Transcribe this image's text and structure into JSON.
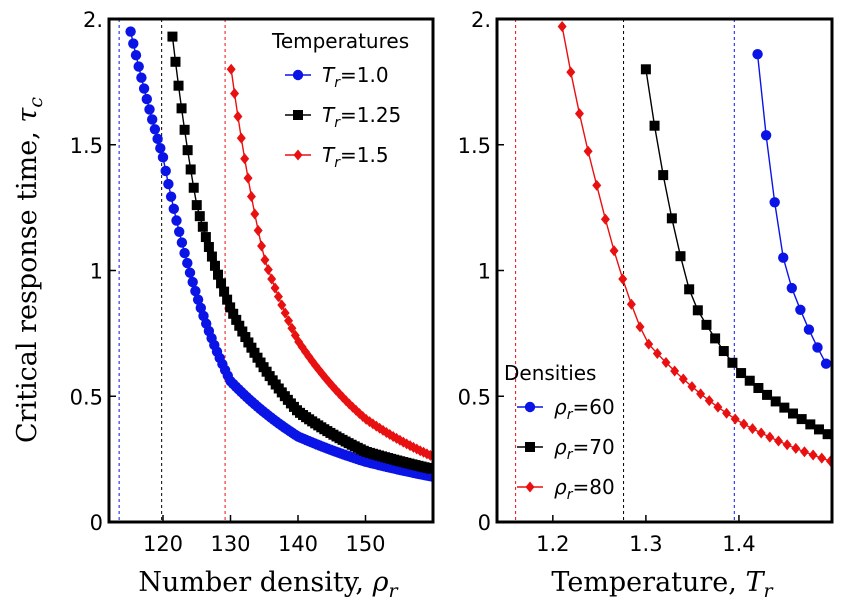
{
  "chart_data": [
    {
      "type": "scatter",
      "panel": "left",
      "xlabel": "Number density, ",
      "xlabel_symbol": "ρ",
      "xlabel_sub": "r",
      "ylabel": "Critical response time, ",
      "ylabel_symbol": "τ",
      "ylabel_sub": "c",
      "xlim": [
        112,
        160
      ],
      "ylim": [
        0,
        2.0
      ],
      "xticks": [
        120,
        130,
        140,
        150
      ],
      "xtick_labels": [
        "120",
        "130",
        "140",
        "150"
      ],
      "yticks": [
        0,
        0.5,
        1,
        1.5,
        2.0
      ],
      "ytick_labels": [
        "0",
        "0.5",
        "1",
        "1.5",
        "2."
      ],
      "legend_title": "Temperatures",
      "legend_position": "top-right",
      "series": [
        {
          "name": "Tr=1.0",
          "legend_prefix": "T",
          "legend_sub": "r",
          "legend_suffix": "=1.0",
          "color": "#0a14e6",
          "marker": "circle",
          "divergence": 113.5,
          "x_start": 115.2,
          "x_end": 160,
          "x_step": 0.4,
          "points": [
            [
              115.2,
              1.95
            ],
            [
              120,
              1.45
            ],
            [
              130,
              0.56
            ],
            [
              140,
              0.34
            ],
            [
              150,
              0.24
            ],
            [
              160,
              0.18
            ]
          ]
        },
        {
          "name": "Tr=1.25",
          "legend_prefix": "T",
          "legend_sub": "r",
          "legend_suffix": "=1.25",
          "color": "#000000",
          "marker": "square",
          "divergence": 119.8,
          "x_start": 121.4,
          "x_end": 160,
          "x_step": 0.45,
          "points": [
            [
              121.4,
              1.93
            ],
            [
              125,
              1.26
            ],
            [
              130,
              0.85
            ],
            [
              140,
              0.44
            ],
            [
              150,
              0.28
            ],
            [
              160,
              0.21
            ]
          ]
        },
        {
          "name": "Tr=1.5",
          "legend_prefix": "T",
          "legend_sub": "r",
          "legend_suffix": "=1.5",
          "color": "#e81010",
          "marker": "diamond",
          "divergence": 129.2,
          "x_start": 130.1,
          "x_end": 160,
          "x_step": 0.5,
          "points": [
            [
              130.1,
              1.8
            ],
            [
              135,
              1.05
            ],
            [
              140,
              0.72
            ],
            [
              150,
              0.41
            ],
            [
              160,
              0.26
            ]
          ]
        }
      ]
    },
    {
      "type": "scatter",
      "panel": "right",
      "xlabel": "Temperature, ",
      "xlabel_symbol": "T",
      "xlabel_sub": "r",
      "xlim": [
        1.14,
        1.5
      ],
      "ylim": [
        0,
        2.0
      ],
      "xticks": [
        1.2,
        1.3,
        1.4
      ],
      "xtick_labels": [
        "1.2",
        "1.3",
        "1.4"
      ],
      "yticks": [
        0,
        0.5,
        1,
        1.5,
        2.0
      ],
      "ytick_labels": [
        "0",
        "0.5",
        "1",
        "1.5",
        "2."
      ],
      "legend_title": "Densities",
      "legend_position": "bottom-left",
      "series": [
        {
          "name": "ρr=60",
          "legend_prefix": "ρ",
          "legend_sub": "r",
          "legend_suffix": "=60",
          "color": "#0a14e6",
          "marker": "circle",
          "divergence": 1.395,
          "x_start": 1.42,
          "x_end": 1.495,
          "x_step": 0.0092,
          "points": [
            [
              1.42,
              1.86
            ],
            [
              1.45,
              1.0
            ],
            [
              1.495,
              0.62
            ]
          ]
        },
        {
          "name": "ρr=70",
          "legend_prefix": "ρ",
          "legend_sub": "r",
          "legend_suffix": "=70",
          "color": "#000000",
          "marker": "square",
          "divergence": 1.276,
          "x_start": 1.3,
          "x_end": 1.5,
          "x_step": 0.0093,
          "points": [
            [
              1.3,
              1.8
            ],
            [
              1.35,
              0.88
            ],
            [
              1.4,
              0.6
            ],
            [
              1.5,
              0.34
            ]
          ]
        },
        {
          "name": "ρr=80",
          "legend_prefix": "ρ",
          "legend_sub": "r",
          "legend_suffix": "=80",
          "color": "#e81010",
          "marker": "diamond",
          "divergence": 1.16,
          "x_start": 1.21,
          "x_end": 1.5,
          "x_step": 0.0093,
          "points": [
            [
              1.21,
              1.97
            ],
            [
              1.25,
              1.3
            ],
            [
              1.3,
              0.72
            ],
            [
              1.4,
              0.4
            ],
            [
              1.5,
              0.24
            ]
          ]
        }
      ]
    }
  ]
}
